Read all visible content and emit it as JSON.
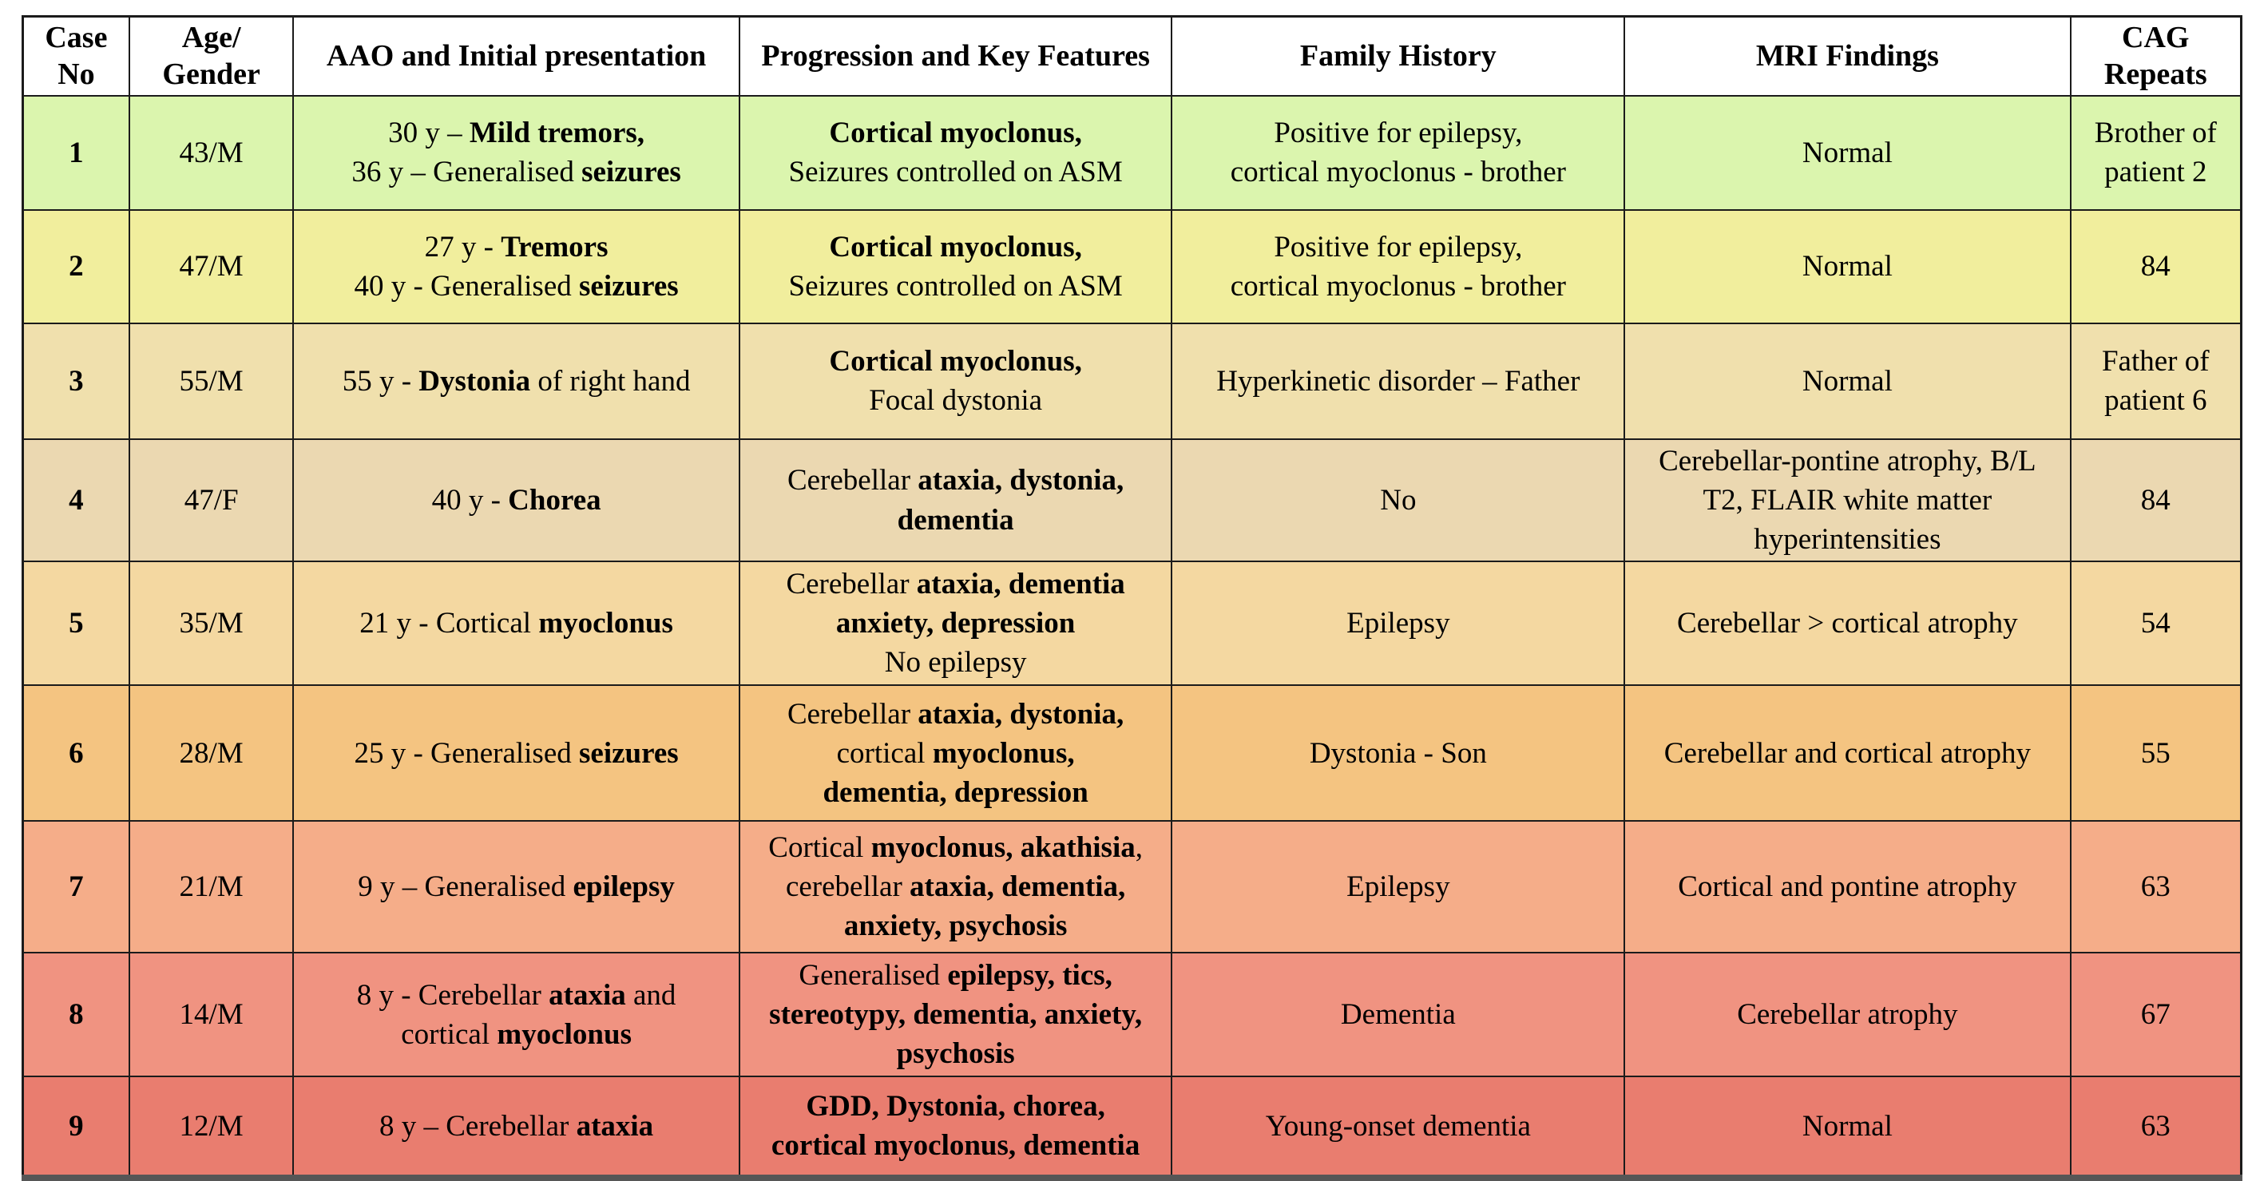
{
  "table": {
    "columns": [
      {
        "id": "case-no",
        "label": "Case\nNo",
        "width": "4.8%"
      },
      {
        "id": "age-gender",
        "label": "Age/\nGender",
        "width": "7.4%"
      },
      {
        "id": "aao",
        "label": "AAO and Initial presentation",
        "width": "20.1%"
      },
      {
        "id": "progression",
        "label": "Progression and Key Features",
        "width": "19.5%"
      },
      {
        "id": "family-history",
        "label": "Family History",
        "width": "20.4%"
      },
      {
        "id": "mri-findings",
        "label": "MRI Findings",
        "width": "20.1%"
      },
      {
        "id": "cag-repeats",
        "label": "CAG\nRepeats",
        "width": "7.7%"
      }
    ],
    "rows": [
      {
        "case_no": "1",
        "age_gender": "43/M",
        "row_color": "#dbf5ae",
        "height": 143,
        "aao": [
          [
            {
              "t": "30 y – ",
              "b": false
            },
            {
              "t": "Mild tremors,",
              "b": true
            }
          ],
          [
            {
              "t": "36 y – Generalised ",
              "b": false
            },
            {
              "t": "seizures",
              "b": true
            }
          ]
        ],
        "progression": [
          [
            {
              "t": "Cortical myoclonus,",
              "b": true
            }
          ],
          [
            {
              "t": "Seizures controlled on ASM",
              "b": false
            }
          ]
        ],
        "family": [
          [
            {
              "t": "Positive for epilepsy,",
              "b": false
            }
          ],
          [
            {
              "t": "cortical myoclonus - brother",
              "b": false
            }
          ]
        ],
        "mri": [
          [
            {
              "t": "Normal",
              "b": false
            }
          ]
        ],
        "cag": [
          [
            {
              "t": "Brother of",
              "b": false
            }
          ],
          [
            {
              "t": "patient 2",
              "b": false
            }
          ]
        ]
      },
      {
        "case_no": "2",
        "age_gender": "47/M",
        "row_color": "#f1ee9d",
        "height": 142,
        "aao": [
          [
            {
              "t": "27 y - ",
              "b": false
            },
            {
              "t": "Tremors",
              "b": true
            }
          ],
          [
            {
              "t": "40 y - Generalised ",
              "b": false
            },
            {
              "t": "seizures",
              "b": true
            }
          ]
        ],
        "progression": [
          [
            {
              "t": "Cortical myoclonus,",
              "b": true
            }
          ],
          [
            {
              "t": "Seizures controlled on ASM",
              "b": false
            }
          ]
        ],
        "family": [
          [
            {
              "t": "Positive for epilepsy,",
              "b": false
            }
          ],
          [
            {
              "t": "cortical myoclonus - brother",
              "b": false
            }
          ]
        ],
        "mri": [
          [
            {
              "t": "Normal",
              "b": false
            }
          ]
        ],
        "cag": [
          [
            {
              "t": "84",
              "b": false
            }
          ]
        ]
      },
      {
        "case_no": "3",
        "age_gender": "55/M",
        "row_color": "#f0e0ad",
        "height": 145,
        "aao": [
          [
            {
              "t": "55 y - ",
              "b": false
            },
            {
              "t": "Dystonia",
              "b": true
            },
            {
              "t": " of right hand",
              "b": false
            }
          ]
        ],
        "progression": [
          [
            {
              "t": "Cortical myoclonus,",
              "b": true
            }
          ],
          [
            {
              "t": "Focal dystonia",
              "b": false
            }
          ]
        ],
        "family": [
          [
            {
              "t": "Hyperkinetic disorder – Father",
              "b": false
            }
          ]
        ],
        "mri": [
          [
            {
              "t": "Normal",
              "b": false
            }
          ]
        ],
        "cag": [
          [
            {
              "t": "Father of",
              "b": false
            }
          ],
          [
            {
              "t": "patient 6",
              "b": false
            }
          ]
        ]
      },
      {
        "case_no": "4",
        "age_gender": "47/F",
        "row_color": "#ebd8b1",
        "height": 145,
        "aao": [
          [
            {
              "t": "40 y - ",
              "b": false
            },
            {
              "t": "Chorea",
              "b": true
            }
          ]
        ],
        "progression": [
          [
            {
              "t": "Cerebellar ",
              "b": false
            },
            {
              "t": "ataxia, dystonia,",
              "b": true
            }
          ],
          [
            {
              "t": "dementia",
              "b": true
            }
          ]
        ],
        "family": [
          [
            {
              "t": "No",
              "b": false
            }
          ]
        ],
        "mri": [
          [
            {
              "t": "Cerebellar-pontine atrophy, B/L",
              "b": false
            }
          ],
          [
            {
              "t": "T2, FLAIR white matter",
              "b": false
            }
          ],
          [
            {
              "t": "hyperintensities",
              "b": false
            }
          ]
        ],
        "cag": [
          [
            {
              "t": "84",
              "b": false
            }
          ]
        ]
      },
      {
        "case_no": "5",
        "age_gender": "35/M",
        "row_color": "#f4d8a1",
        "height": 155,
        "aao": [
          [
            {
              "t": "21 y - Cortical ",
              "b": false
            },
            {
              "t": "myoclonus",
              "b": true
            }
          ]
        ],
        "progression": [
          [
            {
              "t": "Cerebellar ",
              "b": false
            },
            {
              "t": "ataxia, dementia",
              "b": true
            }
          ],
          [
            {
              "t": "anxiety, depression",
              "b": true
            }
          ],
          [
            {
              "t": "No epilepsy",
              "b": false
            }
          ]
        ],
        "family": [
          [
            {
              "t": "Epilepsy",
              "b": false
            }
          ]
        ],
        "mri": [
          [
            {
              "t": "Cerebellar > cortical atrophy",
              "b": false
            }
          ]
        ],
        "cag": [
          [
            {
              "t": "54",
              "b": false
            }
          ]
        ]
      },
      {
        "case_no": "6",
        "age_gender": "28/M",
        "row_color": "#f4c481",
        "height": 170,
        "aao": [
          [
            {
              "t": "25 y - Generalised ",
              "b": false
            },
            {
              "t": "seizures",
              "b": true
            }
          ]
        ],
        "progression": [
          [
            {
              "t": "Cerebellar ",
              "b": false
            },
            {
              "t": "ataxia, dystonia,",
              "b": true
            }
          ],
          [
            {
              "t": "cortical ",
              "b": false
            },
            {
              "t": "myoclonus,",
              "b": true
            }
          ],
          [
            {
              "t": "dementia, depression",
              "b": true
            }
          ]
        ],
        "family": [
          [
            {
              "t": "Dystonia - Son",
              "b": false
            }
          ]
        ],
        "mri": [
          [
            {
              "t": "Cerebellar and cortical atrophy",
              "b": false
            }
          ]
        ],
        "cag": [
          [
            {
              "t": "55",
              "b": false
            }
          ]
        ]
      },
      {
        "case_no": "7",
        "age_gender": "21/M",
        "row_color": "#f5ad89",
        "height": 165,
        "aao": [
          [
            {
              "t": "9 y – Generalised ",
              "b": false
            },
            {
              "t": "epilepsy",
              "b": true
            }
          ]
        ],
        "progression": [
          [
            {
              "t": "Cortical ",
              "b": false
            },
            {
              "t": "myoclonus, akathisia",
              "b": true
            },
            {
              "t": ",",
              "b": false
            }
          ],
          [
            {
              "t": "cerebellar ",
              "b": false
            },
            {
              "t": "ataxia, dementia,",
              "b": true
            }
          ],
          [
            {
              "t": "anxiety, psychosis",
              "b": true
            }
          ]
        ],
        "family": [
          [
            {
              "t": "Epilepsy",
              "b": false
            }
          ]
        ],
        "mri": [
          [
            {
              "t": "Cortical and pontine atrophy",
              "b": false
            }
          ]
        ],
        "cag": [
          [
            {
              "t": "63",
              "b": false
            }
          ]
        ]
      },
      {
        "case_no": "8",
        "age_gender": "14/M",
        "row_color": "#f09381",
        "height": 155,
        "aao": [
          [
            {
              "t": "8 y - Cerebellar ",
              "b": false
            },
            {
              "t": "ataxia",
              "b": true
            },
            {
              "t": " and",
              "b": false
            }
          ],
          [
            {
              "t": "cortical ",
              "b": false
            },
            {
              "t": "myoclonus",
              "b": true
            }
          ]
        ],
        "progression": [
          [
            {
              "t": "Generalised ",
              "b": false
            },
            {
              "t": "epilepsy, tics,",
              "b": true
            }
          ],
          [
            {
              "t": "stereotypy, dementia, anxiety,",
              "b": true
            }
          ],
          [
            {
              "t": "psychosis",
              "b": true
            }
          ]
        ],
        "family": [
          [
            {
              "t": "Dementia",
              "b": false
            }
          ]
        ],
        "mri": [
          [
            {
              "t": "Cerebellar atrophy",
              "b": false
            }
          ]
        ],
        "cag": [
          [
            {
              "t": "67",
              "b": false
            }
          ]
        ]
      },
      {
        "case_no": "9",
        "age_gender": "12/M",
        "row_color": "#e97d6f",
        "height": 127,
        "aao": [
          [
            {
              "t": "8 y – Cerebellar ",
              "b": false
            },
            {
              "t": "ataxia",
              "b": true
            }
          ]
        ],
        "progression": [
          [
            {
              "t": "GDD, Dystonia, chorea,",
              "b": true
            }
          ],
          [
            {
              "t": "cortical myoclonus, dementia",
              "b": true
            }
          ]
        ],
        "family": [
          [
            {
              "t": "Young-onset dementia",
              "b": false
            }
          ]
        ],
        "mri": [
          [
            {
              "t": "Normal",
              "b": false
            }
          ]
        ],
        "cag": [
          [
            {
              "t": "63",
              "b": false
            }
          ]
        ]
      }
    ]
  },
  "colors": {
    "border": "#1b1b1b",
    "bottom_bar": "#565656",
    "header_bg": "#ffffff",
    "row_gradient": [
      "#dbf5ae",
      "#f1ee9d",
      "#f0e0ad",
      "#ebd8b1",
      "#f4d8a1",
      "#f4c481",
      "#f5ad89",
      "#f09381",
      "#e97d6f"
    ]
  }
}
